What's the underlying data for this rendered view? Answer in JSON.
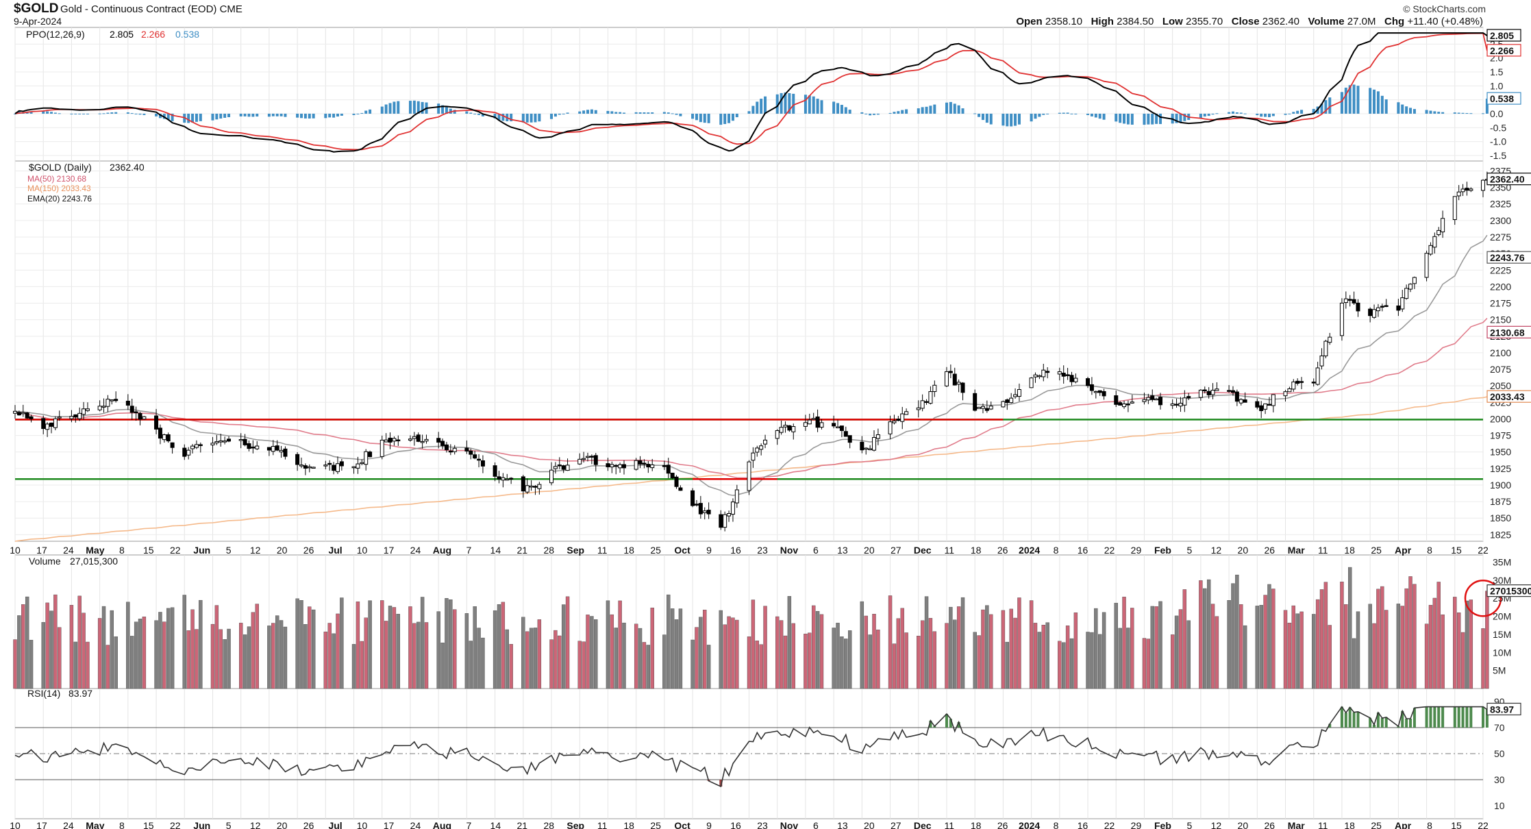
{
  "header": {
    "symbol": "$GOLD",
    "description": "Gold - Continuous Contract (EOD)",
    "exchange": "CME",
    "date": "9-Apr-2024",
    "brand": "© StockCharts.com",
    "open_label": "Open",
    "open": "2358.10",
    "high_label": "High",
    "high": "2384.50",
    "low_label": "Low",
    "low": "2355.70",
    "close_label": "Close",
    "close": "2362.40",
    "volume_label": "Volume",
    "volume": "27.0M",
    "change_label": "Chg",
    "change": "+11.40 (+0.48%)"
  },
  "legends": {
    "ppo_name": "PPO(12,26,9)",
    "ppo_v1": "2.805",
    "ppo_v2": "2.266",
    "ppo_v3": "0.538",
    "price_name": "$GOLD (Daily)",
    "price_v": "2362.40",
    "ma50": "MA(50) 2130.68",
    "ma150": "MA(150) 2033.43",
    "ema20": "EMA(20) 2243.76",
    "vol_name": "Volume",
    "vol_v": "27,015,300",
    "rsi_name": "RSI(14)",
    "rsi_v": "83.97"
  },
  "chart_data": {
    "type": "candlestick",
    "title": "$GOLD (Daily)",
    "dates": [
      "2023-04-10",
      "2023-04-17",
      "2023-04-24",
      "2023-05-01",
      "2023-05-08",
      "2023-05-15",
      "2023-05-22",
      "2023-05-29",
      "2023-06-05",
      "2023-06-12",
      "2023-06-19",
      "2023-06-26",
      "2023-07-03",
      "2023-07-10",
      "2023-07-17",
      "2023-07-24",
      "2023-07-31",
      "2023-08-07",
      "2023-08-14",
      "2023-08-21",
      "2023-08-28",
      "2023-09-04",
      "2023-09-11",
      "2023-09-18",
      "2023-09-25",
      "2023-10-02",
      "2023-10-09",
      "2023-10-16",
      "2023-10-23",
      "2023-10-30",
      "2023-11-06",
      "2023-11-13",
      "2023-11-20",
      "2023-11-27",
      "2023-12-04",
      "2023-12-11",
      "2023-12-18",
      "2023-12-25",
      "2024-01-01",
      "2024-01-08",
      "2024-01-15",
      "2024-01-22",
      "2024-01-29",
      "2024-02-05",
      "2024-02-12",
      "2024-02-19",
      "2024-02-26",
      "2024-03-04",
      "2024-03-11",
      "2024-03-18",
      "2024-03-25",
      "2024-04-01",
      "2024-04-08"
    ],
    "weekly_close": [
      2015,
      1992,
      1999,
      2025,
      2020,
      1980,
      1950,
      1965,
      1962,
      1958,
      1935,
      1925,
      1930,
      1962,
      1975,
      1962,
      1946,
      1918,
      1892,
      1918,
      1942,
      1930,
      1935,
      1925,
      1870,
      1835,
      1935,
      1985,
      1995,
      1992,
      1950,
      1990,
      2015,
      2075,
      2015,
      2025,
      2065,
      2070,
      2045,
      2025,
      2030,
      2020,
      2040,
      2038,
      2015,
      2045,
      2060,
      2180,
      2160,
      2170,
      2245,
      2340,
      2362
    ],
    "price_ylim": [
      1815,
      2390
    ],
    "price_ticks": [
      1825,
      1850,
      1875,
      1900,
      1925,
      1950,
      1975,
      2000,
      2025,
      2050,
      2075,
      2100,
      2125,
      2150,
      2175,
      2200,
      2225,
      2250,
      2275,
      2300,
      2325,
      2350,
      2375
    ],
    "last_values": {
      "close": 2362.4,
      "ema20": 2243.76,
      "ma50": 2130.68,
      "ma150": 2033.43
    },
    "support_lines": [
      {
        "value": 1999,
        "color": "#1e8a1e"
      },
      {
        "value": 1909,
        "color": "#1e8a1e"
      },
      {
        "value": 1999,
        "color": "#e00000",
        "from": "2023-04-10",
        "to": "2023-12-11"
      },
      {
        "value": 1909,
        "color": "#e00000",
        "from": "2023-09-25",
        "to": "2023-10-16"
      }
    ],
    "ppo_ylim": [
      -1.7,
      3.1
    ],
    "ppo_ticks": [
      "2.5",
      "2.0",
      "1.5",
      "1.0",
      "0.5",
      "0.0",
      "-0.5",
      "-1.0",
      "-1.5"
    ],
    "ppo_last": {
      "ppo": 2.805,
      "signal": 2.266,
      "hist": 0.538
    },
    "volume_ticks": [
      "35M",
      "30M",
      "25M",
      "20M",
      "15M",
      "10M",
      "5M"
    ],
    "volume_max": 37,
    "volume_last": 27.0153,
    "rsi_ticks": [
      "90",
      "70",
      "50",
      "30",
      "10"
    ],
    "rsi_last": 83.97,
    "x_labels": [
      "10",
      "17",
      "24",
      "May",
      "8",
      "15",
      "22",
      "Jun",
      "5",
      "12",
      "20",
      "26",
      "Jul",
      "10",
      "17",
      "24",
      "Aug",
      "7",
      "14",
      "21",
      "28",
      "Sep",
      "11",
      "18",
      "25",
      "Oct",
      "9",
      "16",
      "23",
      "Nov",
      "6",
      "13",
      "20",
      "27",
      "Dec",
      "11",
      "18",
      "26",
      "2024",
      "8",
      "16",
      "22",
      "29",
      "Feb",
      "5",
      "12",
      "20",
      "26",
      "Mar",
      "11",
      "18",
      "25",
      "Apr",
      "8",
      "15",
      "22"
    ],
    "x_label_bold": [
      "May",
      "Jun",
      "Jul",
      "Aug",
      "Sep",
      "Oct",
      "Nov",
      "Dec",
      "2024",
      "Feb",
      "Mar",
      "Apr"
    ],
    "colors": {
      "up": "#ffffff",
      "down": "#000000",
      "ema": "#999999",
      "ma50": "#e07b8a",
      "ma150": "#f5b98a",
      "vol_up": "#cc6677",
      "vol_down": "#808080",
      "ppo": "#000000",
      "signal": "#e03030",
      "hist": "#3e8ec4",
      "rsi": "#333333",
      "overbought": "#4d8a4d",
      "oversold": "#9a4040",
      "highlight": "#e01010"
    }
  }
}
